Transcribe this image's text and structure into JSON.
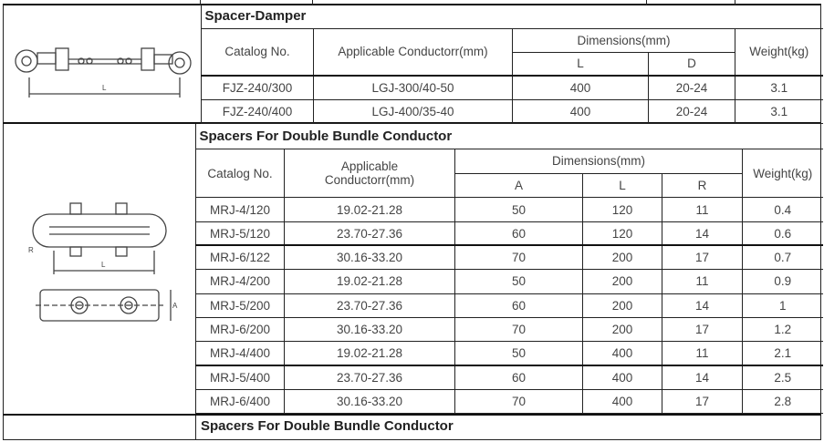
{
  "spacer_damper": {
    "title": "Spacer-Damper",
    "headers": {
      "catalog": "Catalog No.",
      "conductor": "Applicable Conductorr(mm)",
      "dimensions": "Dimensions(mm)",
      "L": "L",
      "D": "D",
      "weight": "Weight(kg)"
    },
    "rows": [
      {
        "catalog": "FJZ-240/300",
        "conductor": "LGJ-300/40-50",
        "L": "400",
        "D": "20-24",
        "weight": "3.1"
      },
      {
        "catalog": "FJZ-240/400",
        "conductor": "LGJ-400/35-40",
        "L": "400",
        "D": "20-24",
        "weight": "3.1"
      }
    ]
  },
  "double_bundle": {
    "title": "Spacers For Double Bundle Conductor",
    "headers": {
      "catalog": "Catalog No.",
      "conductor": "Applicable Conductorr(mm)",
      "dimensions": "Dimensions(mm)",
      "A": "A",
      "L": "L",
      "R": "R",
      "weight": "Weight(kg)"
    },
    "rows": [
      {
        "catalog": "MRJ-4/120",
        "conductor": "19.02-21.28",
        "A": "50",
        "L": "120",
        "R": "11",
        "weight": "0.4"
      },
      {
        "catalog": "MRJ-5/120",
        "conductor": "23.70-27.36",
        "A": "60",
        "L": "120",
        "R": "14",
        "weight": "0.6"
      },
      {
        "catalog": "MRJ-6/122",
        "conductor": "30.16-33.20",
        "A": "70",
        "L": "200",
        "R": "17",
        "weight": "0.7"
      },
      {
        "catalog": "MRJ-4/200",
        "conductor": "19.02-21.28",
        "A": "50",
        "L": "200",
        "R": "11",
        "weight": "0.9"
      },
      {
        "catalog": "MRJ-5/200",
        "conductor": "23.70-27.36",
        "A": "60",
        "L": "200",
        "R": "14",
        "weight": "1"
      },
      {
        "catalog": "MRJ-6/200",
        "conductor": "30.16-33.20",
        "A": "70",
        "L": "200",
        "R": "17",
        "weight": "1.2"
      },
      {
        "catalog": "MRJ-4/400",
        "conductor": "19.02-21.28",
        "A": "50",
        "L": "400",
        "R": "11",
        "weight": "2.1"
      },
      {
        "catalog": "MRJ-5/400",
        "conductor": "23.70-27.36",
        "A": "60",
        "L": "400",
        "R": "14",
        "weight": "2.5"
      },
      {
        "catalog": "MRJ-6/400",
        "conductor": "30.16-33.20",
        "A": "70",
        "L": "400",
        "R": "17",
        "weight": "2.8"
      }
    ]
  },
  "footer_section": {
    "title": "Spacers For Double Bundle Conductor"
  },
  "drawings": {
    "dimension_label_L": "L",
    "dimension_label_A": "A",
    "dimension_label_R": "R"
  }
}
